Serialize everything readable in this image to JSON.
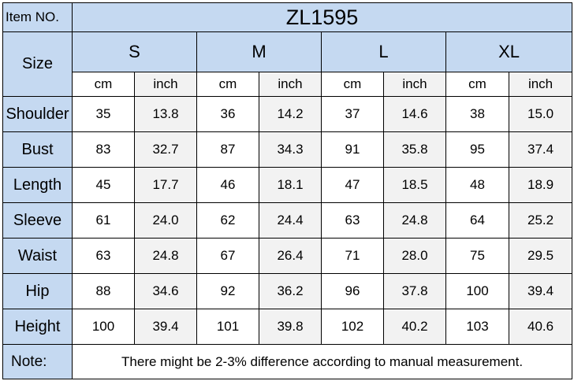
{
  "item": {
    "label": "Item NO.",
    "value": "ZL1595"
  },
  "size_label": "Size",
  "sizes": [
    "S",
    "M",
    "L",
    "XL"
  ],
  "units": [
    "cm",
    "inch"
  ],
  "rows": [
    {
      "label": "Shoulder",
      "values": [
        "35",
        "13.8",
        "36",
        "14.2",
        "37",
        "14.6",
        "38",
        "15.0"
      ]
    },
    {
      "label": "Bust",
      "values": [
        "83",
        "32.7",
        "87",
        "34.3",
        "91",
        "35.8",
        "95",
        "37.4"
      ]
    },
    {
      "label": "Length",
      "values": [
        "45",
        "17.7",
        "46",
        "18.1",
        "47",
        "18.5",
        "48",
        "18.9"
      ]
    },
    {
      "label": "Sleeve",
      "values": [
        "61",
        "24.0",
        "62",
        "24.4",
        "63",
        "24.8",
        "64",
        "25.2"
      ]
    },
    {
      "label": "Waist",
      "values": [
        "63",
        "24.8",
        "67",
        "26.4",
        "71",
        "28.0",
        "75",
        "29.5"
      ]
    },
    {
      "label": "Hip",
      "values": [
        "88",
        "34.6",
        "92",
        "36.2",
        "96",
        "37.8",
        "100",
        "39.4"
      ]
    },
    {
      "label": "Height",
      "values": [
        "100",
        "39.4",
        "101",
        "39.8",
        "102",
        "40.2",
        "103",
        "40.6"
      ]
    }
  ],
  "note": {
    "label": "Note:",
    "text": "There might be 2-3% difference according to manual measurement."
  }
}
